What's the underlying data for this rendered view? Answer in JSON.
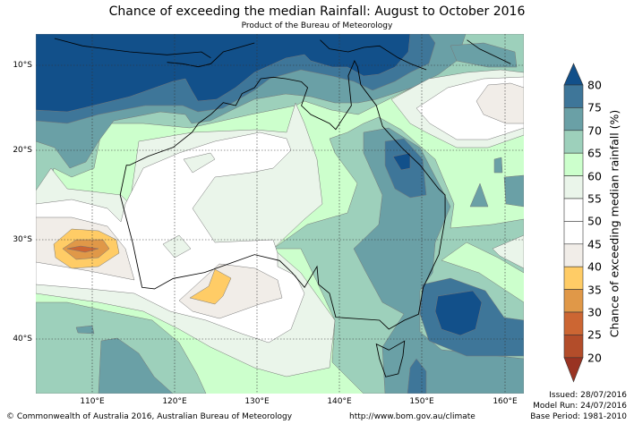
{
  "title": "Chance of exceeding the median Rainfall: August to October 2016",
  "subtitle": "Product of the Bureau of Meteorology",
  "lat_labels": [
    "10°S",
    "20°S",
    "30°S",
    "40°S"
  ],
  "lon_labels": [
    "110°E",
    "120°E",
    "130°E",
    "140°E",
    "150°E",
    "160°E"
  ],
  "colorbar": {
    "label": "Chance of exceeding median rainfall (%)",
    "ticks": [
      "80",
      "75",
      "70",
      "65",
      "60",
      "55",
      "50",
      "45",
      "40",
      "35",
      "30",
      "25",
      "20"
    ],
    "colors": {
      "above_80": "#12508a",
      "75_80": "#3e7699",
      "70_75": "#6aa0a6",
      "65_70": "#9dd0bb",
      "60_65": "#ccffcc",
      "55_60": "#eaf5ea",
      "50_55": "#ffffff",
      "45_50": "#ffffff",
      "40_45": "#f1ede8",
      "35_40": "#ffcc66",
      "30_35": "#e09848",
      "25_30": "#cc6633",
      "20_25": "#b34d2a",
      "below_20": "#993322"
    }
  },
  "footer": {
    "copyright": "© Commonwealth of Australia 2016, Australian Bureau of Meteorology",
    "url": "http://www.bom.gov.au/climate",
    "issued": "Issued: 28/07/2016",
    "model_run": "Model Run: 24/07/2016",
    "base_period": "Base Period: 1981-2010"
  }
}
